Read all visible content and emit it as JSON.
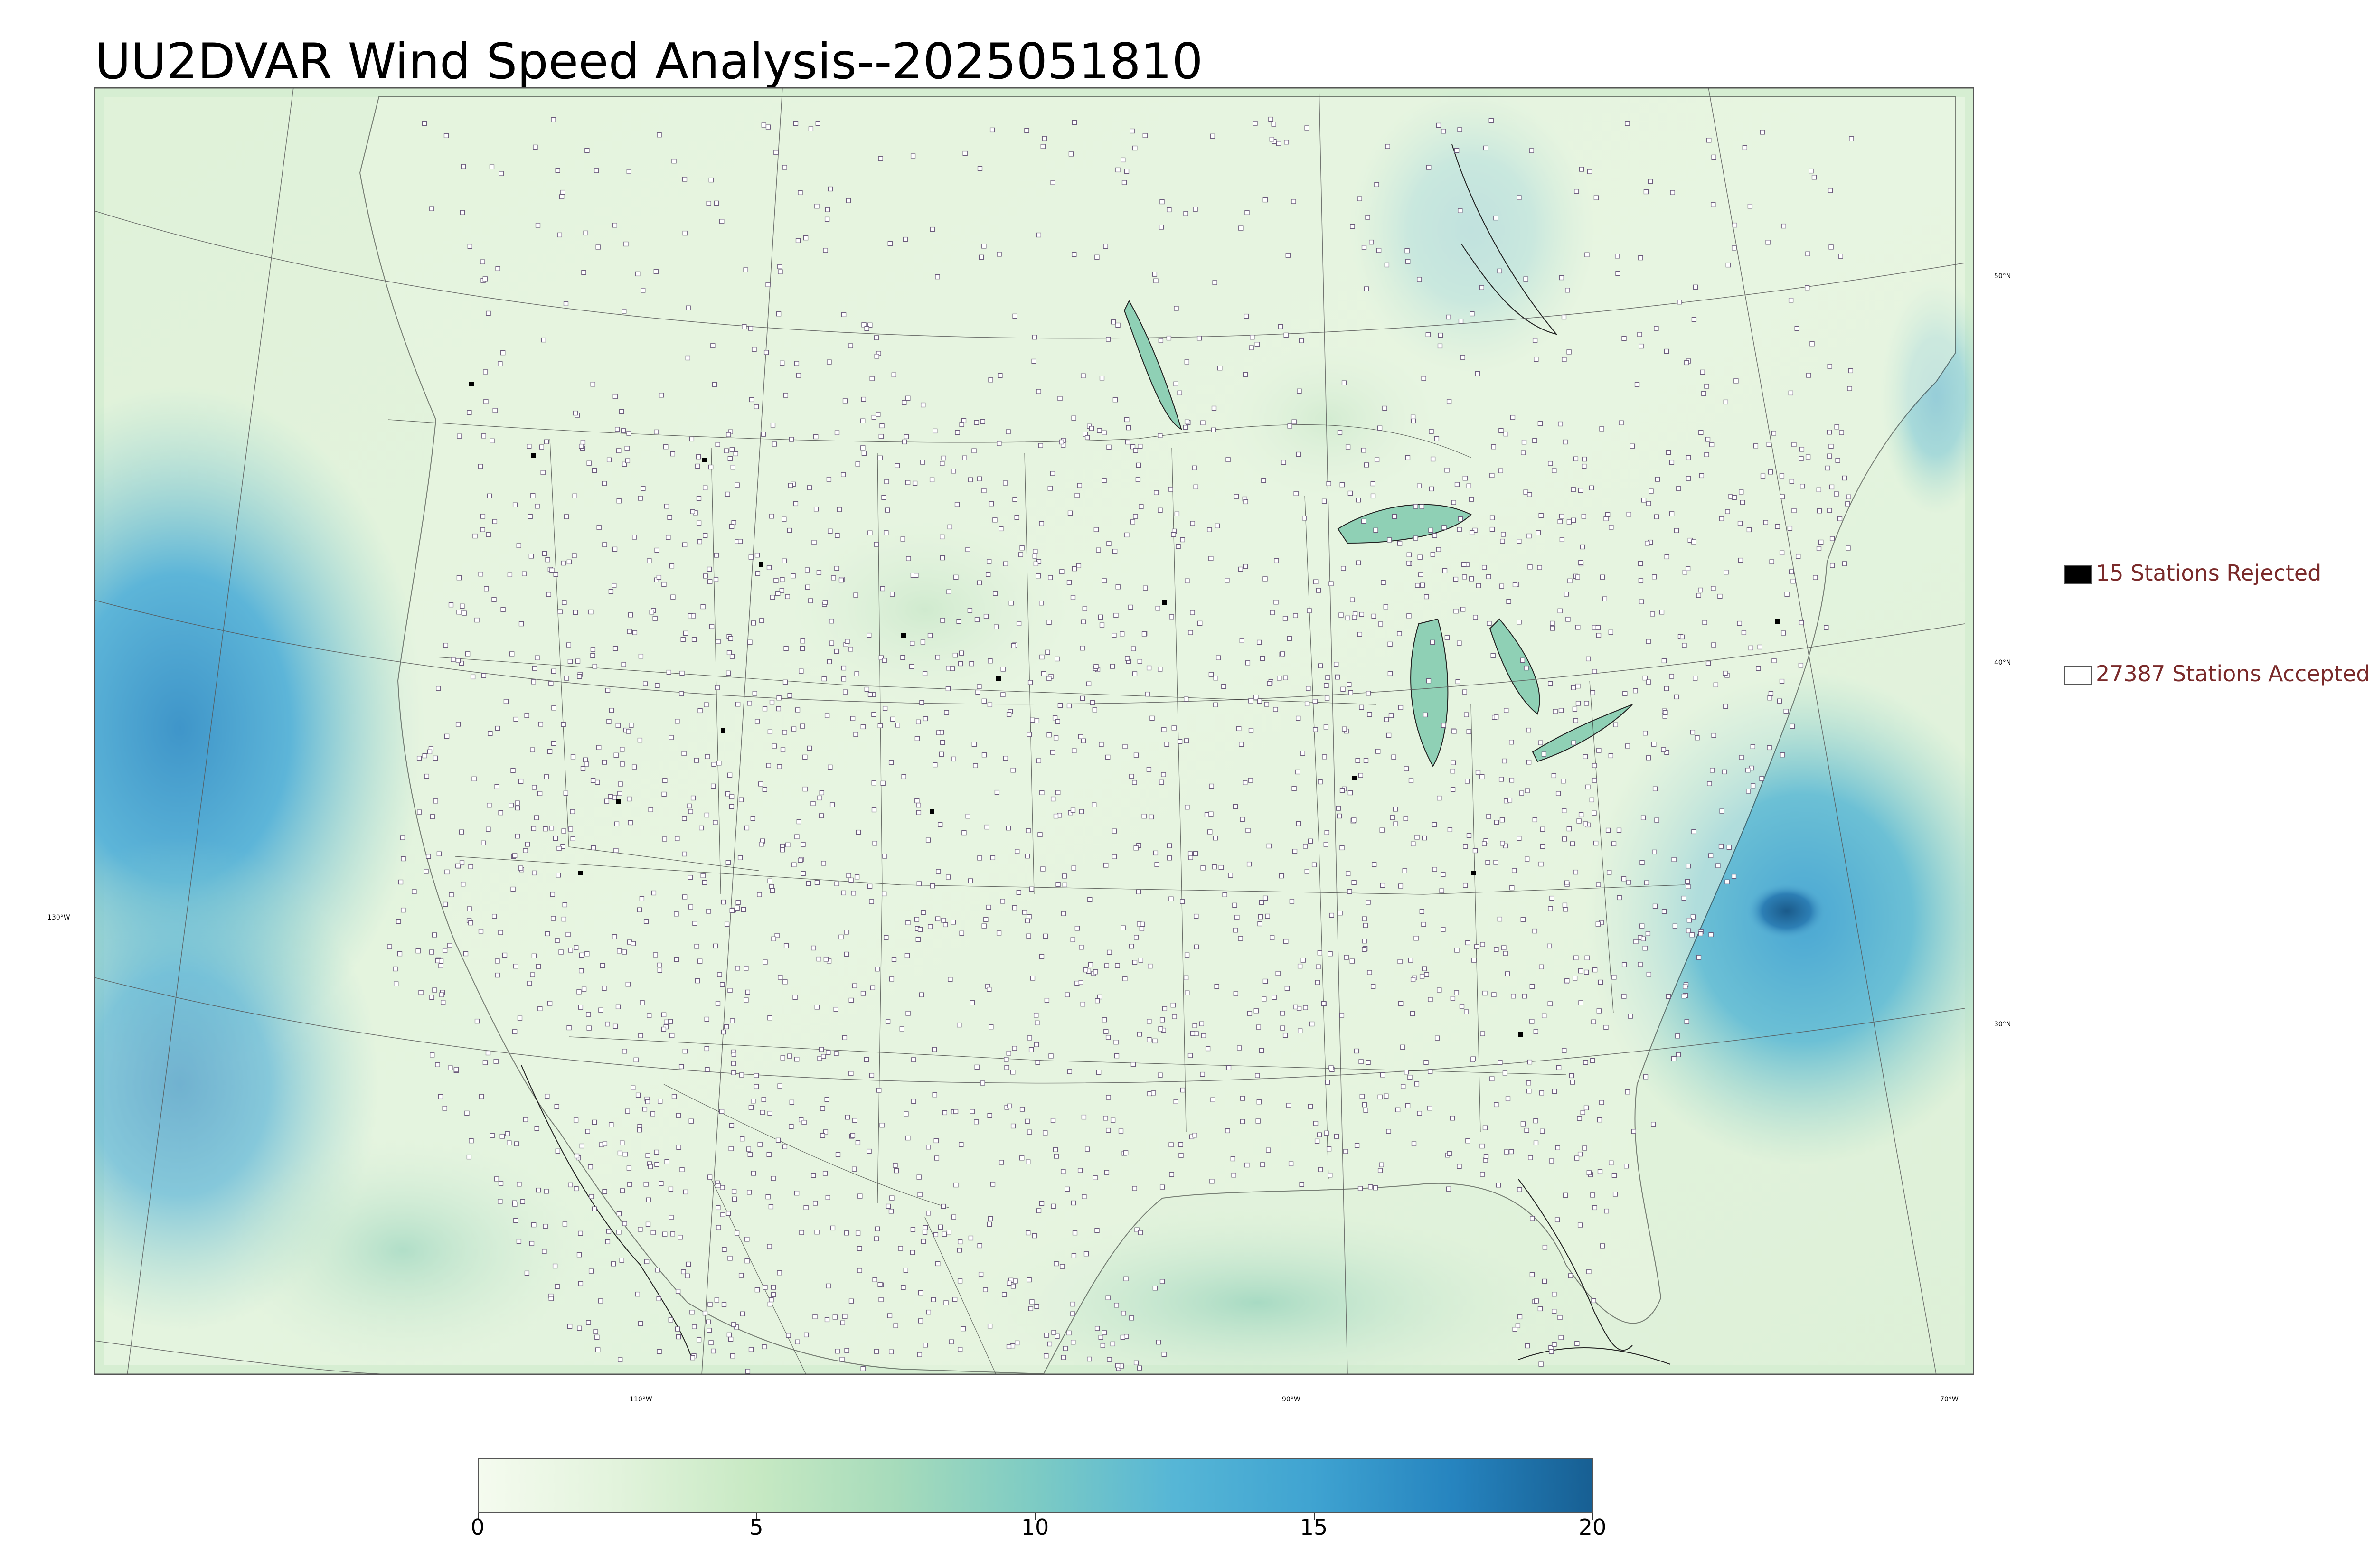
{
  "title": "UU2DVAR Wind Speed Analysis--2025051810",
  "legend": {
    "rejected": {
      "label": "15 Stations Rejected",
      "color": "#000000"
    },
    "accepted": {
      "label": "27387 Stations Accepted",
      "color": "#ffffff"
    }
  },
  "map": {
    "graticule_labels": {
      "lat_50": "50°N",
      "lat_40": "40°N",
      "lat_30": "30°N",
      "lon_130": "130°W",
      "lon_110": "110°W",
      "lon_90": "90°W",
      "lon_70": "70°W"
    },
    "colors": {
      "land_light": "#eef7e6",
      "land_mid": "#cfead0",
      "ocean_strong": "#5bb2d6",
      "ocean_dark": "#1f5f90",
      "station_marker": "#6a5a7a"
    }
  },
  "colorbar": {
    "min": 0,
    "max": 20,
    "tick_labels": [
      "0",
      "5",
      "10",
      "15",
      "20"
    ],
    "stops": [
      "#f5fbef",
      "#e2f3dc",
      "#c7e9c3",
      "#a6dbbb",
      "#7dcbc4",
      "#56b6d6",
      "#3fa3d1",
      "#2684bf",
      "#175f93"
    ]
  }
}
